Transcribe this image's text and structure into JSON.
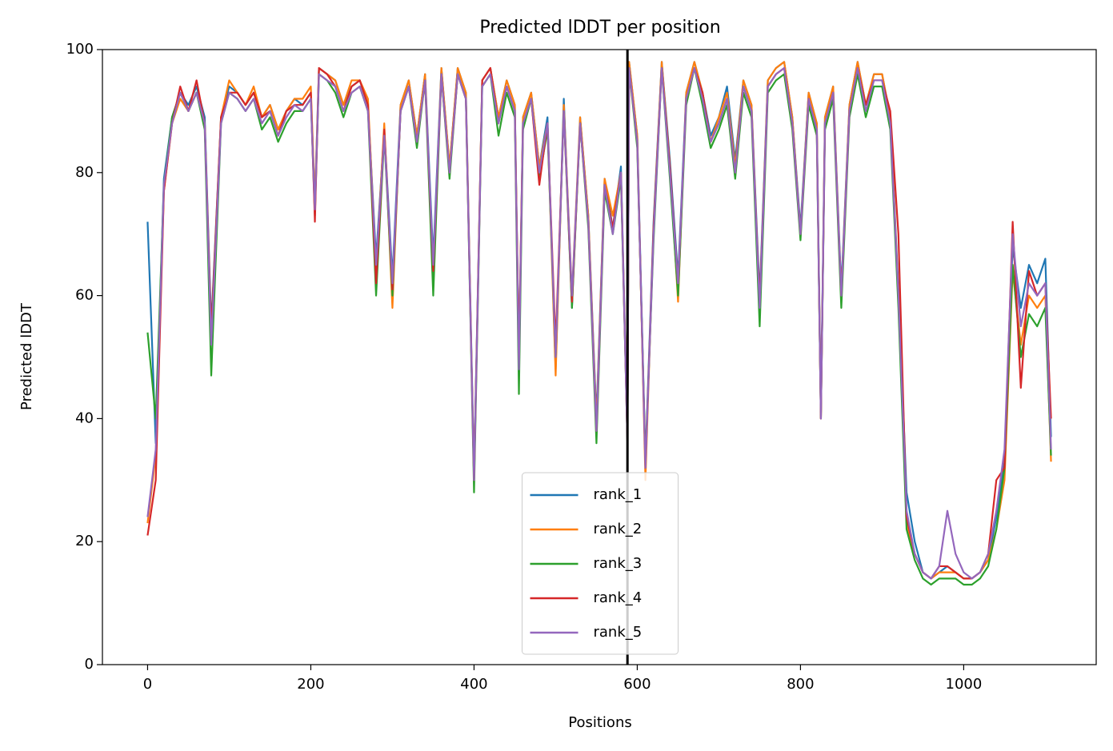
{
  "chart_data": {
    "type": "line",
    "title": "Predicted lDDT per position",
    "x_label": "Positions",
    "y_label": "Predicted lDDT",
    "x": [
      0,
      10,
      20,
      30,
      40,
      50,
      60,
      70,
      78,
      90,
      100,
      110,
      120,
      130,
      140,
      150,
      160,
      170,
      180,
      190,
      200,
      205,
      210,
      220,
      230,
      240,
      250,
      260,
      270,
      280,
      290,
      300,
      310,
      320,
      330,
      340,
      350,
      360,
      370,
      380,
      390,
      400,
      410,
      420,
      430,
      440,
      450,
      455,
      460,
      470,
      480,
      490,
      500,
      510,
      520,
      530,
      540,
      550,
      560,
      570,
      580,
      588,
      590,
      600,
      610,
      620,
      630,
      640,
      650,
      660,
      670,
      680,
      690,
      700,
      710,
      720,
      730,
      740,
      750,
      760,
      770,
      780,
      790,
      800,
      810,
      820,
      825,
      830,
      840,
      850,
      860,
      870,
      880,
      890,
      900,
      910,
      920,
      930,
      940,
      950,
      960,
      970,
      980,
      990,
      1000,
      1010,
      1020,
      1030,
      1040,
      1050,
      1060,
      1070,
      1080,
      1090,
      1100,
      1107
    ],
    "series": [
      {
        "name": "rank_1",
        "color": "#1f77b4",
        "values": [
          72,
          36,
          79,
          89,
          93,
          91,
          94,
          89,
          55,
          89,
          94,
          93,
          91,
          93,
          89,
          91,
          87,
          90,
          92,
          91,
          93,
          75,
          97,
          96,
          95,
          91,
          94,
          95,
          91,
          66,
          87,
          63,
          91,
          95,
          86,
          96,
          66,
          97,
          81,
          97,
          93,
          31,
          95,
          97,
          89,
          95,
          91,
          50,
          89,
          93,
          81,
          89,
          48,
          92,
          58,
          89,
          73,
          40,
          79,
          71,
          81,
          37,
          98,
          86,
          33,
          72,
          98,
          82,
          63,
          93,
          98,
          93,
          86,
          89,
          94,
          82,
          95,
          91,
          60,
          95,
          97,
          98,
          89,
          71,
          93,
          88,
          41,
          89,
          94,
          61,
          91,
          98,
          91,
          96,
          96,
          89,
          61,
          28,
          20,
          15,
          14,
          15,
          16,
          15,
          14,
          14,
          15,
          17,
          24,
          33,
          68,
          58,
          65,
          62,
          66,
          37
        ]
      },
      {
        "name": "rank_2",
        "color": "#ff7f0e",
        "values": [
          23,
          34,
          77,
          88,
          92,
          90,
          93,
          88,
          53,
          89,
          95,
          93,
          91,
          94,
          89,
          91,
          87,
          90,
          92,
          92,
          94,
          75,
          97,
          96,
          95,
          91,
          95,
          95,
          92,
          64,
          88,
          58,
          91,
          95,
          86,
          96,
          63,
          97,
          81,
          97,
          93,
          30,
          95,
          97,
          89,
          95,
          91,
          49,
          89,
          93,
          81,
          88,
          47,
          91,
          60,
          89,
          73,
          39,
          79,
          73,
          80,
          37,
          98,
          86,
          30,
          71,
          98,
          81,
          59,
          93,
          98,
          93,
          85,
          89,
          93,
          81,
          95,
          91,
          58,
          95,
          97,
          98,
          89,
          70,
          93,
          88,
          40,
          89,
          94,
          60,
          91,
          98,
          91,
          96,
          96,
          89,
          60,
          23,
          18,
          15,
          14,
          15,
          15,
          15,
          14,
          14,
          15,
          17,
          22,
          30,
          64,
          52,
          60,
          58,
          60,
          33
        ]
      },
      {
        "name": "rank_3",
        "color": "#2ca02c",
        "values": [
          54,
          40,
          78,
          89,
          93,
          90,
          93,
          87,
          47,
          88,
          93,
          92,
          90,
          92,
          87,
          89,
          85,
          88,
          90,
          90,
          92,
          73,
          96,
          95,
          93,
          89,
          93,
          94,
          90,
          60,
          86,
          60,
          90,
          94,
          84,
          95,
          60,
          96,
          79,
          96,
          92,
          28,
          94,
          96,
          86,
          93,
          89,
          44,
          87,
          92,
          79,
          87,
          50,
          90,
          58,
          88,
          71,
          36,
          77,
          70,
          79,
          36,
          97,
          84,
          33,
          69,
          97,
          79,
          60,
          91,
          97,
          91,
          84,
          87,
          91,
          79,
          93,
          89,
          55,
          93,
          95,
          96,
          87,
          69,
          91,
          86,
          40,
          87,
          92,
          58,
          89,
          96,
          89,
          94,
          94,
          87,
          58,
          22,
          17,
          14,
          13,
          14,
          14,
          14,
          13,
          13,
          14,
          16,
          22,
          32,
          65,
          50,
          57,
          55,
          58,
          34
        ]
      },
      {
        "name": "rank_4",
        "color": "#d62728",
        "values": [
          21,
          30,
          77,
          88,
          94,
          90,
          95,
          88,
          54,
          89,
          93,
          93,
          91,
          93,
          89,
          90,
          86,
          90,
          91,
          91,
          93,
          72,
          97,
          96,
          94,
          90,
          94,
          95,
          91,
          62,
          87,
          61,
          90,
          94,
          85,
          95,
          64,
          96,
          80,
          96,
          92,
          30,
          95,
          97,
          88,
          94,
          90,
          50,
          88,
          92,
          78,
          88,
          52,
          90,
          59,
          88,
          72,
          38,
          78,
          71,
          80,
          36,
          97,
          85,
          32,
          71,
          97,
          81,
          62,
          92,
          97,
          93,
          85,
          88,
          92,
          80,
          94,
          90,
          59,
          94,
          96,
          97,
          88,
          70,
          92,
          87,
          40,
          88,
          93,
          60,
          90,
          97,
          91,
          95,
          95,
          90,
          70,
          24,
          18,
          15,
          14,
          16,
          16,
          15,
          14,
          14,
          15,
          18,
          30,
          32,
          72,
          45,
          64,
          60,
          62,
          40
        ]
      },
      {
        "name": "rank_5",
        "color": "#9467bd",
        "values": [
          24,
          35,
          78,
          88,
          93,
          90,
          93,
          88,
          52,
          88,
          93,
          92,
          90,
          92,
          88,
          90,
          86,
          89,
          91,
          90,
          92,
          74,
          96,
          95,
          94,
          90,
          93,
          94,
          90,
          65,
          86,
          62,
          90,
          94,
          85,
          95,
          65,
          96,
          80,
          96,
          92,
          30,
          94,
          96,
          88,
          94,
          90,
          48,
          88,
          92,
          80,
          88,
          50,
          90,
          60,
          88,
          72,
          38,
          78,
          70,
          80,
          36,
          97,
          85,
          32,
          70,
          97,
          80,
          62,
          92,
          97,
          92,
          85,
          88,
          92,
          80,
          94,
          90,
          58,
          94,
          96,
          97,
          88,
          70,
          92,
          87,
          40,
          88,
          93,
          60,
          90,
          97,
          90,
          95,
          95,
          88,
          60,
          25,
          18,
          15,
          14,
          16,
          25,
          18,
          15,
          14,
          15,
          18,
          25,
          35,
          70,
          55,
          62,
          60,
          62,
          35
        ]
      }
    ],
    "vline": {
      "x": 588,
      "color": "#000000"
    },
    "xlim": [
      -55.35,
      1162.35
    ],
    "xticks": [
      0,
      200,
      400,
      600,
      800,
      1000
    ],
    "ylim": [
      0,
      100
    ],
    "yticks": [
      0,
      20,
      40,
      60,
      80,
      100
    ],
    "legend": "lower center"
  }
}
